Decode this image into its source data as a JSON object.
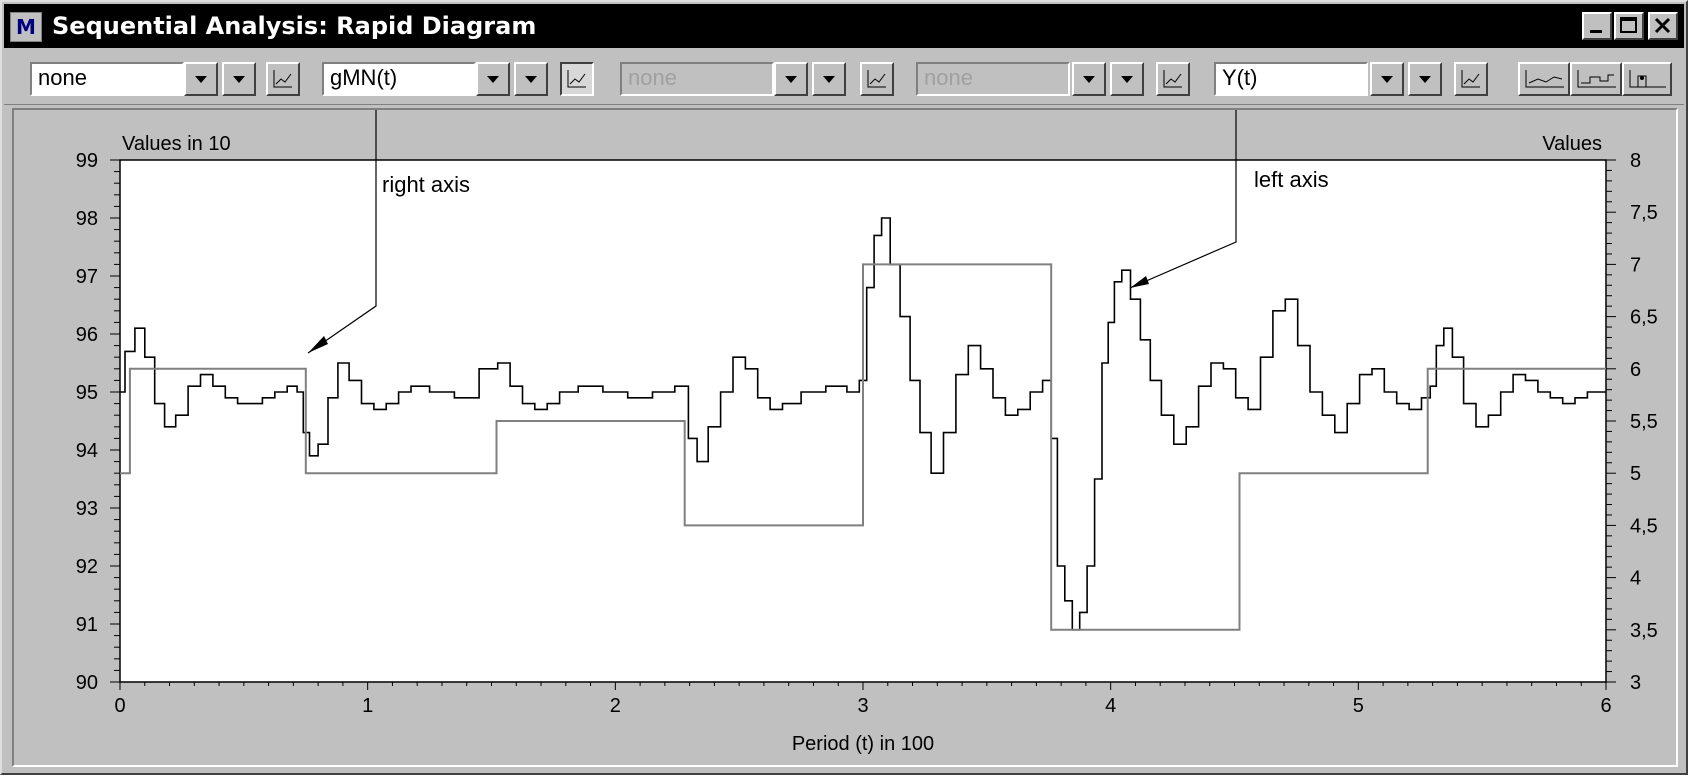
{
  "window": {
    "title": "Sequential Analysis: Rapid Diagram",
    "app_icon": "M",
    "controls": [
      "minimize-icon",
      "maximize-icon",
      "close-icon"
    ]
  },
  "toolbar": {
    "selectors": [
      {
        "value": "none",
        "enabled": true
      },
      {
        "value": "gMN(t)",
        "enabled": true
      },
      {
        "value": "none",
        "enabled": false
      },
      {
        "value": "none",
        "enabled": false
      },
      {
        "value": "Y(t)",
        "enabled": true
      }
    ],
    "chart_style_buttons": [
      "line-chart-icon",
      "step-chart-icon",
      "bar-chart-icon"
    ]
  },
  "chart_data": {
    "type": "line",
    "left_axis_title": "Values in 10",
    "right_axis_title": "Values",
    "xlabel": "Period (t) in 100",
    "xlim": [
      0,
      6
    ],
    "x_ticks": [
      "0",
      "1",
      "2",
      "3",
      "4",
      "5",
      "6"
    ],
    "left_ylim": [
      90,
      99
    ],
    "left_ticks": [
      "90",
      "91",
      "92",
      "93",
      "94",
      "95",
      "96",
      "97",
      "98",
      "99"
    ],
    "right_ylim": [
      3,
      8
    ],
    "right_ticks": [
      "3",
      "3,5",
      "4",
      "4,5",
      "5",
      "5,5",
      "6",
      "6,5",
      "7",
      "7,5",
      "8"
    ],
    "grid": false,
    "annotations": [
      {
        "text": "right axis",
        "points_to": "gMN(t)"
      },
      {
        "text": "left axis",
        "points_to": "Y(t)"
      }
    ],
    "series": [
      {
        "name": "Y(t)",
        "axis": "left",
        "color": "#000000",
        "shape": "line",
        "x": [
          0,
          0.04,
          0.08,
          0.12,
          0.16,
          0.2,
          0.25,
          0.3,
          0.35,
          0.4,
          0.45,
          0.5,
          0.55,
          0.6,
          0.65,
          0.7,
          0.73,
          0.75,
          0.78,
          0.82,
          0.86,
          0.9,
          0.95,
          1.0,
          1.05,
          1.1,
          1.15,
          1.2,
          1.3,
          1.4,
          1.5,
          1.55,
          1.6,
          1.65,
          1.7,
          1.75,
          1.8,
          1.9,
          2.0,
          2.1,
          2.2,
          2.28,
          2.31,
          2.35,
          2.4,
          2.45,
          2.5,
          2.55,
          2.6,
          2.65,
          2.7,
          2.8,
          2.9,
          2.97,
          3.0,
          3.03,
          3.06,
          3.09,
          3.13,
          3.17,
          3.21,
          3.25,
          3.3,
          3.35,
          3.4,
          3.45,
          3.5,
          3.55,
          3.6,
          3.65,
          3.7,
          3.75,
          3.77,
          3.8,
          3.83,
          3.86,
          3.89,
          3.92,
          3.95,
          3.98,
          4.0,
          4.03,
          4.06,
          4.1,
          4.14,
          4.18,
          4.23,
          4.28,
          4.33,
          4.38,
          4.43,
          4.48,
          4.53,
          4.58,
          4.63,
          4.68,
          4.73,
          4.78,
          4.83,
          4.88,
          4.93,
          4.98,
          5.03,
          5.08,
          5.13,
          5.18,
          5.23,
          5.28,
          5.3,
          5.33,
          5.36,
          5.4,
          5.45,
          5.5,
          5.55,
          5.6,
          5.65,
          5.7,
          5.75,
          5.8,
          5.85,
          5.9,
          5.95,
          6.0
        ],
        "values": [
          95.0,
          95.7,
          96.1,
          95.6,
          94.8,
          94.4,
          94.6,
          95.1,
          95.3,
          95.1,
          94.9,
          94.8,
          94.8,
          94.9,
          95.0,
          95.1,
          95.0,
          94.3,
          93.9,
          94.1,
          94.9,
          95.5,
          95.2,
          94.8,
          94.7,
          94.8,
          95.0,
          95.1,
          95.0,
          94.9,
          95.4,
          95.5,
          95.1,
          94.8,
          94.7,
          94.8,
          95.0,
          95.1,
          95.0,
          94.9,
          95.0,
          95.1,
          94.2,
          93.8,
          94.4,
          95.0,
          95.6,
          95.4,
          94.9,
          94.7,
          94.8,
          95.0,
          95.1,
          95.0,
          95.2,
          96.8,
          97.7,
          98.0,
          97.2,
          96.3,
          95.2,
          94.3,
          93.6,
          94.3,
          95.3,
          95.8,
          95.4,
          94.9,
          94.6,
          94.7,
          95.0,
          95.2,
          94.2,
          92.0,
          91.4,
          90.9,
          91.2,
          92.0,
          93.5,
          95.5,
          96.2,
          96.9,
          97.1,
          96.6,
          95.9,
          95.2,
          94.6,
          94.1,
          94.4,
          95.1,
          95.5,
          95.4,
          94.9,
          94.7,
          95.6,
          96.4,
          96.6,
          95.8,
          95.0,
          94.6,
          94.3,
          94.8,
          95.3,
          95.4,
          95.0,
          94.8,
          94.7,
          94.9,
          95.1,
          95.8,
          96.1,
          95.6,
          94.8,
          94.4,
          94.6,
          95.0,
          95.3,
          95.2,
          95.0,
          94.9,
          94.8,
          94.9,
          95.0,
          95.0
        ]
      },
      {
        "name": "gMN(t)",
        "axis": "right",
        "color": "#808080",
        "shape": "step",
        "x": [
          0,
          0.04,
          0.75,
          1.52,
          2.28,
          3.0,
          3.76,
          4.52,
          5.28,
          6.0
        ],
        "values": [
          5.0,
          6.0,
          5.0,
          5.5,
          4.5,
          7.0,
          3.5,
          5.0,
          6.0,
          6.0
        ]
      }
    ]
  }
}
